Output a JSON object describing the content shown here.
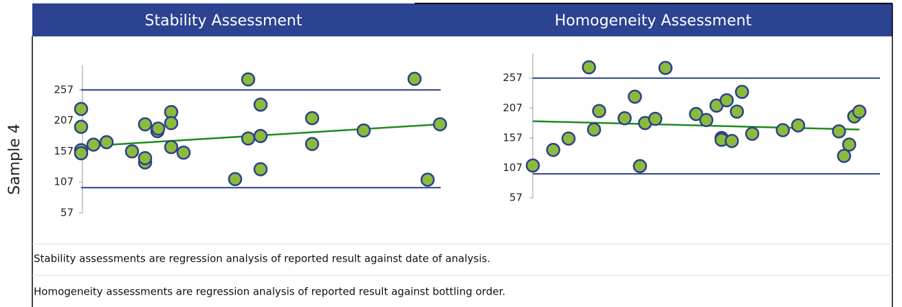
{
  "row_label": "Sample 4",
  "notes": [
    "Stability assessments are regression analysis of reported result against date of analysis.",
    "Homogeneity assessments are regression analysis of reported result against bottling order."
  ],
  "chart_data": [
    {
      "type": "scatter",
      "title": "Stability Assessment",
      "x": [
        0,
        0,
        0,
        0,
        18,
        37,
        74,
        93,
        93,
        93,
        111,
        112,
        131,
        131,
        131,
        149,
        224,
        243,
        243,
        261,
        261,
        261,
        336,
        336,
        411,
        485,
        504,
        522
      ],
      "values": [
        226,
        197,
        159,
        154,
        168,
        172,
        157,
        201,
        139,
        146,
        190,
        194,
        221,
        203,
        164,
        155,
        112,
        274,
        178,
        233,
        182,
        128,
        211,
        169,
        191,
        275,
        111,
        201
      ],
      "xlim": [
        0,
        522
      ],
      "ylim": [
        57,
        297
      ],
      "yticks": [
        57,
        107,
        157,
        207,
        257
      ],
      "limits": [
        257,
        98
      ],
      "trend": {
        "x": [
          0,
          522
        ],
        "values": [
          165,
          201
        ]
      },
      "color": "#8cbb3c"
    },
    {
      "type": "scatter",
      "title": "Homogeneity Assessment",
      "x": [
        0,
        4,
        7,
        11,
        12,
        13,
        18,
        20,
        21,
        22,
        24,
        26,
        32,
        34,
        36,
        37,
        37,
        38,
        39,
        40,
        41,
        43,
        49,
        52,
        60,
        61,
        62,
        63,
        64
      ],
      "values": [
        111,
        137,
        156,
        275,
        171,
        202,
        190,
        226,
        110,
        182,
        189,
        274,
        197,
        187,
        211,
        157,
        154,
        220,
        152,
        201,
        234,
        164,
        170,
        178,
        168,
        127,
        146,
        193,
        201
      ],
      "xlim": [
        0,
        64
      ],
      "ylim": [
        57,
        298
      ],
      "yticks": [
        57,
        107,
        157,
        207,
        257
      ],
      "limits": [
        257,
        97
      ],
      "trend": {
        "x": [
          0,
          64
        ],
        "values": [
          185,
          171
        ]
      },
      "color": "#8cbb3c"
    }
  ]
}
